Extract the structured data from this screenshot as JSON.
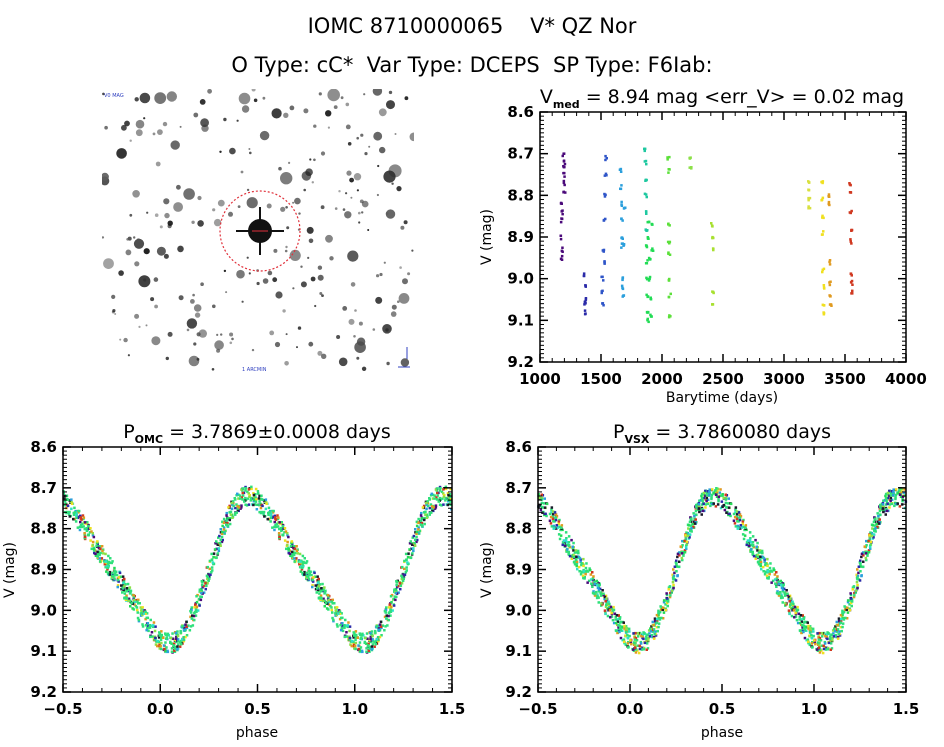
{
  "header": {
    "line1": "IOMC 8710000065    V* QZ Nor",
    "line2": "O Type: cC*  Var Type: DCEPS  SP Type: F6Iab:"
  },
  "finder_chart": {
    "description": "star field finder image with target circled",
    "label_top": "V0 MAG",
    "label_bottom": "1 ARCMIN",
    "marker_color": "#e0303a"
  },
  "chart_data": [
    {
      "id": "lightcurve",
      "type": "scatter",
      "title_main": "V",
      "title_sub": "med",
      "title_rest": " = 8.94 mag <err_V> = 0.02 mag",
      "xlabel": "Barytime (days)",
      "ylabel": "V (mag)",
      "xlim": [
        1000,
        4000
      ],
      "ylim": [
        9.2,
        8.6
      ],
      "xticks": [
        "1000",
        "1500",
        "2000",
        "2500",
        "3000",
        "3500",
        "4000"
      ],
      "yticks": [
        "8.6",
        "8.7",
        "8.8",
        "8.9",
        "9.0",
        "9.1",
        "9.2"
      ],
      "series": [
        {
          "color": "#4b0a7a",
          "points": [
            [
              1170,
              8.82
            ],
            [
              1172,
              8.86
            ],
            [
              1174,
              8.9
            ],
            [
              1176,
              8.95
            ],
            [
              1178,
              8.93
            ],
            [
              1180,
              8.84
            ],
            [
              1190,
              8.7
            ],
            [
              1192,
              8.73
            ],
            [
              1194,
              8.75
            ],
            [
              1196,
              8.77
            ],
            [
              1198,
              8.79
            ],
            [
              1195,
              8.72
            ]
          ]
        },
        {
          "color": "#2a2aa8",
          "points": [
            [
              1365,
              8.99
            ],
            [
              1367,
              9.02
            ],
            [
              1370,
              9.05
            ],
            [
              1372,
              9.08
            ],
            [
              1368,
              9.06
            ]
          ]
        },
        {
          "color": "#2f55c8",
          "points": [
            [
              1510,
              9.0
            ],
            [
              1512,
              9.03
            ],
            [
              1515,
              9.06
            ],
            [
              1518,
              8.93
            ],
            [
              1520,
              8.96
            ],
            [
              1525,
              8.86
            ],
            [
              1530,
              8.8
            ],
            [
              1535,
              8.75
            ],
            [
              1538,
              8.71
            ]
          ]
        },
        {
          "color": "#2b9fdc",
          "points": [
            [
              1660,
              8.74
            ],
            [
              1662,
              8.78
            ],
            [
              1665,
              8.82
            ],
            [
              1668,
              8.86
            ],
            [
              1670,
              8.9
            ],
            [
              1672,
              8.92
            ],
            [
              1675,
              9.0
            ],
            [
              1678,
              9.02
            ],
            [
              1680,
              9.04
            ],
            [
              1690,
              8.92
            ],
            [
              1695,
              8.83
            ]
          ]
        },
        {
          "color": "#1ec8a0",
          "points": [
            [
              1860,
              8.69
            ],
            [
              1862,
              8.72
            ],
            [
              1864,
              8.76
            ],
            [
              1866,
              8.8
            ],
            [
              1868,
              8.84
            ],
            [
              1870,
              8.88
            ]
          ]
        },
        {
          "color": "#22dc55",
          "points": [
            [
              1872,
              8.92
            ],
            [
              1874,
              8.96
            ],
            [
              1876,
              9.0
            ],
            [
              1878,
              9.04
            ],
            [
              1880,
              9.08
            ],
            [
              1882,
              9.1
            ],
            [
              1885,
              8.86
            ],
            [
              1890,
              8.9
            ],
            [
              1895,
              8.95
            ],
            [
              1900,
              9.0
            ],
            [
              1905,
              9.05
            ],
            [
              1910,
              9.09
            ],
            [
              1915,
              8.87
            ],
            [
              1920,
              8.93
            ]
          ]
        },
        {
          "color": "#5ce03a",
          "points": [
            [
              2050,
              8.71
            ],
            [
              2052,
              8.74
            ],
            [
              2054,
              8.87
            ],
            [
              2056,
              8.91
            ],
            [
              2058,
              8.94
            ],
            [
              2060,
              9.0
            ],
            [
              2062,
              9.04
            ],
            [
              2064,
              9.09
            ]
          ]
        },
        {
          "color": "#8ce048",
          "points": [
            [
              2230,
              8.71
            ],
            [
              2232,
              8.73
            ]
          ]
        },
        {
          "color": "#a8e030",
          "points": [
            [
              2410,
              8.87
            ],
            [
              2412,
              8.9
            ],
            [
              2414,
              8.93
            ],
            [
              2416,
              9.03
            ],
            [
              2418,
              9.06
            ]
          ]
        },
        {
          "color": "#d8e040",
          "points": [
            [
              3200,
              8.77
            ],
            [
              3202,
              8.79
            ],
            [
              3204,
              8.81
            ],
            [
              3206,
              8.83
            ]
          ]
        },
        {
          "color": "#f0e020",
          "points": [
            [
              3310,
              8.77
            ],
            [
              3312,
              8.81
            ],
            [
              3314,
              8.85
            ],
            [
              3316,
              8.89
            ],
            [
              3318,
              8.98
            ],
            [
              3320,
              9.02
            ],
            [
              3322,
              9.06
            ],
            [
              3324,
              9.08
            ]
          ]
        },
        {
          "color": "#e09a20",
          "points": [
            [
              3370,
              8.8
            ],
            [
              3372,
              8.82
            ],
            [
              3375,
              8.96
            ],
            [
              3378,
              9.01
            ],
            [
              3380,
              9.04
            ],
            [
              3382,
              9.06
            ]
          ]
        },
        {
          "color": "#d03820",
          "points": [
            [
              3540,
              8.77
            ],
            [
              3542,
              8.79
            ],
            [
              3545,
              8.84
            ],
            [
              3548,
              8.88
            ],
            [
              3550,
              8.91
            ],
            [
              3552,
              8.99
            ],
            [
              3555,
              9.01
            ],
            [
              3558,
              9.03
            ]
          ]
        }
      ]
    },
    {
      "id": "phase_omc",
      "type": "scatter",
      "title_main": "P",
      "title_sub": "OMC",
      "title_rest": " = 3.7869±0.0008 days",
      "xlabel": "phase",
      "ylabel": "V (mag)",
      "xlim": [
        -0.5,
        1.5
      ],
      "ylim": [
        9.2,
        8.6
      ],
      "xticks": [
        "−0.5",
        "0.0",
        "0.5",
        "1.0",
        "1.5"
      ],
      "yticks": [
        "8.6",
        "8.7",
        "8.8",
        "8.9",
        "9.0",
        "9.1",
        "9.2"
      ],
      "curve": {
        "mean": 8.9,
        "amplitude": 0.17,
        "phase_min": 0.0
      },
      "colors": [
        "#4b0a7a",
        "#2a2aa8",
        "#2b9fdc",
        "#2ee0c8",
        "#22dc55",
        "#8ce048",
        "#f0e020",
        "#e09a20",
        "#d03820",
        "#1a1a2a"
      ]
    },
    {
      "id": "phase_vsx",
      "type": "scatter",
      "title_main": "P",
      "title_sub": "VSX",
      "title_rest": " = 3.7860080 days",
      "xlabel": "phase",
      "ylabel": "V (mag)",
      "xlim": [
        -0.5,
        1.5
      ],
      "ylim": [
        9.2,
        8.6
      ],
      "xticks": [
        "−0.5",
        "0.0",
        "0.5",
        "1.0",
        "1.5"
      ],
      "yticks": [
        "8.6",
        "8.7",
        "8.8",
        "8.9",
        "9.0",
        "9.1",
        "9.2"
      ],
      "curve": {
        "mean": 8.9,
        "amplitude": 0.17,
        "phase_min": 0.0
      },
      "colors": [
        "#4b0a7a",
        "#2a2aa8",
        "#2b9fdc",
        "#2ee0c8",
        "#22dc55",
        "#8ce048",
        "#f0e020",
        "#e09a20",
        "#d03820",
        "#1a1a2a"
      ]
    }
  ]
}
